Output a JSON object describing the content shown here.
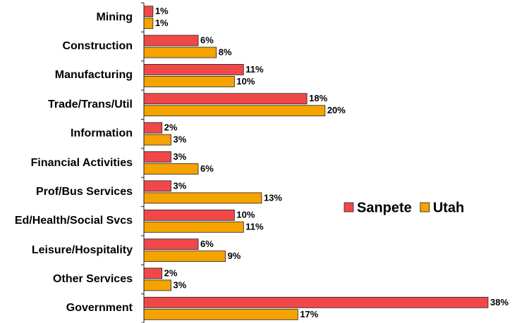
{
  "chart_data": {
    "type": "bar",
    "orientation": "horizontal",
    "categories": [
      "Mining",
      "Construction",
      "Manufacturing",
      "Trade/Trans/Util",
      "Information",
      "Financial Activities",
      "Prof/Bus Services",
      "Ed/Health/Social Svcs",
      "Leisure/Hospitality",
      "Other Services",
      "Government"
    ],
    "series": [
      {
        "name": "Sanpete",
        "color": "#f04848",
        "values": [
          1,
          6,
          11,
          18,
          2,
          3,
          3,
          10,
          6,
          2,
          38
        ],
        "value_labels": [
          "1%",
          "6%",
          "11%",
          "18%",
          "2%",
          "3%",
          "3%",
          "10%",
          "6%",
          "2%",
          "38%"
        ]
      },
      {
        "name": "Utah",
        "color": "#f5a300",
        "values": [
          1,
          8,
          10,
          20,
          3,
          6,
          13,
          11,
          9,
          3,
          17
        ],
        "value_labels": [
          "1%",
          "8%",
          "10%",
          "20%",
          "3%",
          "6%",
          "13%",
          "11%",
          "9%",
          "3%",
          "17%"
        ]
      }
    ],
    "xlim": [
      0,
      38
    ],
    "legend": "right"
  }
}
